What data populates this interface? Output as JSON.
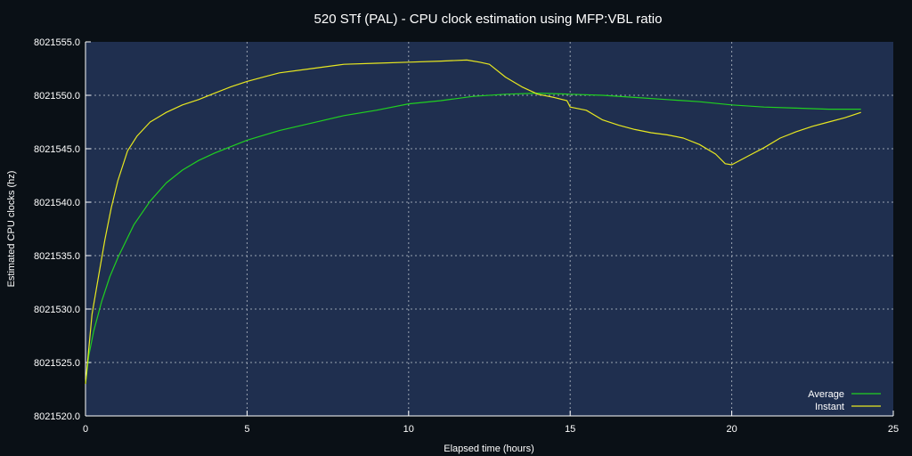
{
  "chart_data": {
    "type": "line",
    "title": "520 STf (PAL) - CPU clock estimation using MFP:VBL ratio",
    "xlabel": "Elapsed time (hours)",
    "ylabel": "Estimated CPU clocks (hz)",
    "xlim": [
      0,
      25
    ],
    "ylim": [
      8021520.0,
      8021555.0
    ],
    "x_ticks": [
      0,
      5,
      10,
      15,
      20,
      25
    ],
    "x_tick_labels": [
      "0",
      "5",
      "10",
      "15",
      "20",
      "25"
    ],
    "y_ticks": [
      8021520.0,
      8021525.0,
      8021530.0,
      8021535.0,
      8021540.0,
      8021545.0,
      8021550.0,
      8021555.0
    ],
    "y_tick_labels": [
      "8021520.0",
      "8021525.0",
      "8021530.0",
      "8021535.0",
      "8021540.0",
      "8021545.0",
      "8021550.0",
      "8021555.0"
    ],
    "grid": true,
    "legend_position": "bottom-right",
    "colors": {
      "background": "#0a1016",
      "plot_area": "#1f2f4f",
      "grid": "#9aa3b2",
      "average": "#20d020",
      "instant": "#e8e820"
    },
    "series": [
      {
        "name": "Average",
        "color": "#20d020",
        "points": [
          [
            0,
            8021523.0
          ],
          [
            0.1,
            8021525.6
          ],
          [
            0.25,
            8021527.9
          ],
          [
            0.5,
            8021530.7
          ],
          [
            0.75,
            8021533.0
          ],
          [
            1,
            8021534.8
          ],
          [
            1.5,
            8021537.9
          ],
          [
            2,
            8021540.1
          ],
          [
            2.5,
            8021541.8
          ],
          [
            3,
            8021543.0
          ],
          [
            3.5,
            8021543.9
          ],
          [
            4,
            8021544.6
          ],
          [
            4.5,
            8021545.2
          ],
          [
            5,
            8021545.8
          ],
          [
            6,
            8021546.7
          ],
          [
            7,
            8021547.4
          ],
          [
            8,
            8021548.1
          ],
          [
            9,
            8021548.6
          ],
          [
            10,
            8021549.2
          ],
          [
            11,
            8021549.5
          ],
          [
            12,
            8021549.9
          ],
          [
            13,
            8021550.1
          ],
          [
            14,
            8021550.2
          ],
          [
            15,
            8021550.1
          ],
          [
            16,
            8021550.0
          ],
          [
            17,
            8021549.8
          ],
          [
            18,
            8021549.6
          ],
          [
            19,
            8021549.4
          ],
          [
            20,
            8021549.1
          ],
          [
            21,
            8021548.9
          ],
          [
            22,
            8021548.8
          ],
          [
            23,
            8021548.7
          ],
          [
            24,
            8021548.7
          ]
        ]
      },
      {
        "name": "Instant",
        "color": "#e8e820",
        "points": [
          [
            0,
            8021523.0
          ],
          [
            0.2,
            8021529.5
          ],
          [
            0.4,
            8021533.0
          ],
          [
            0.6,
            8021536.5
          ],
          [
            0.8,
            8021539.5
          ],
          [
            1,
            8021542.0
          ],
          [
            1.3,
            8021544.8
          ],
          [
            1.6,
            8021546.2
          ],
          [
            2,
            8021547.5
          ],
          [
            2.5,
            8021548.4
          ],
          [
            3,
            8021549.1
          ],
          [
            3.5,
            8021549.6
          ],
          [
            4,
            8021550.2
          ],
          [
            4.5,
            8021550.8
          ],
          [
            5,
            8021551.3
          ],
          [
            5.5,
            8021551.7
          ],
          [
            6,
            8021552.1
          ],
          [
            7,
            8021552.5
          ],
          [
            8,
            8021552.9
          ],
          [
            9,
            8021553.0
          ],
          [
            10,
            8021553.1
          ],
          [
            11,
            8021553.2
          ],
          [
            11.8,
            8021553.3
          ],
          [
            12.2,
            8021553.1
          ],
          [
            12.5,
            8021552.9
          ],
          [
            13,
            8021551.7
          ],
          [
            13.5,
            8021550.8
          ],
          [
            14,
            8021550.1
          ],
          [
            14.5,
            8021549.8
          ],
          [
            14.9,
            8021549.5
          ],
          [
            15,
            8021548.9
          ],
          [
            15.5,
            8021548.6
          ],
          [
            16,
            8021547.7
          ],
          [
            16.5,
            8021547.2
          ],
          [
            17,
            8021546.8
          ],
          [
            17.5,
            8021546.5
          ],
          [
            18,
            8021546.3
          ],
          [
            18.5,
            8021546.0
          ],
          [
            19,
            8021545.4
          ],
          [
            19.5,
            8021544.5
          ],
          [
            19.8,
            8021543.6
          ],
          [
            20,
            8021543.5
          ],
          [
            20.5,
            8021544.3
          ],
          [
            21,
            8021545.1
          ],
          [
            21.5,
            8021546.0
          ],
          [
            22,
            8021546.6
          ],
          [
            22.5,
            8021547.1
          ],
          [
            23,
            8021547.5
          ],
          [
            23.5,
            8021547.9
          ],
          [
            24,
            8021548.4
          ]
        ]
      }
    ]
  }
}
